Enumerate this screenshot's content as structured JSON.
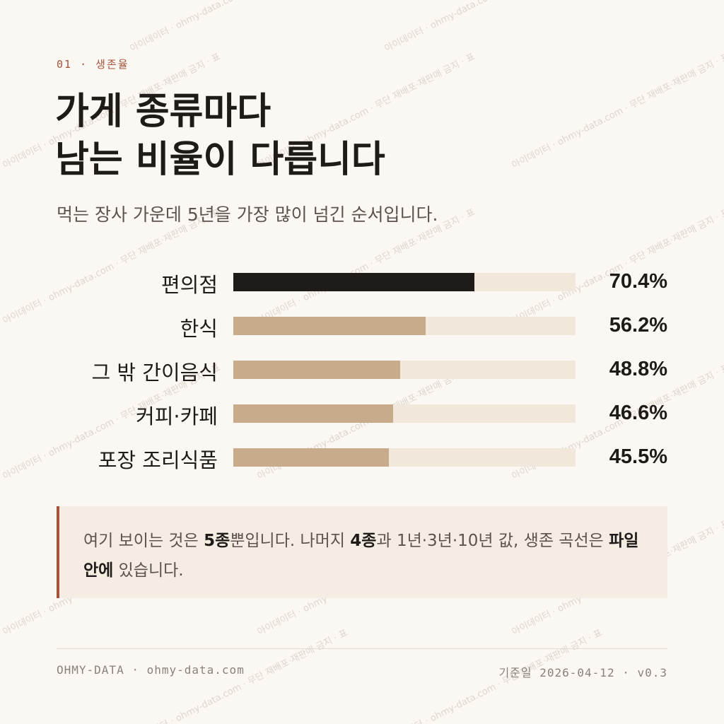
{
  "header": {
    "eyebrow": "01 · 생존율",
    "title_line1": "가게 종류마다",
    "title_line2": "남는 비율이 다릅니다",
    "subtitle": "먹는 장사 가운데 5년을 가장 많이 넘긴 순서입니다."
  },
  "colors": {
    "accent": "#a5533b",
    "bar_top": "#1f1b18",
    "bar": "#c8ab8a",
    "track": "#f1e7da"
  },
  "chart_data": {
    "type": "bar",
    "orientation": "horizontal",
    "categories": [
      "편의점",
      "한식",
      "그 밖 간이음식",
      "커피·카페",
      "포장 조리식품"
    ],
    "values": [
      70.4,
      56.2,
      48.8,
      46.6,
      45.5
    ],
    "value_labels": [
      "70.4%",
      "56.2%",
      "48.8%",
      "46.6%",
      "45.5%"
    ],
    "xlim": [
      0,
      100
    ],
    "highlight_index": 0,
    "title": "",
    "xlabel": "",
    "ylabel": ""
  },
  "note": {
    "t1": "여기 보이는 것은 ",
    "b1": "5종",
    "t2": "뿐입니다. 나머지 ",
    "b2": "4종",
    "t3": "과 1년·3년·10년 값, 생존 곡선은 ",
    "b3": "파일 안에",
    "t4": " 있습니다."
  },
  "footer": {
    "brand": "OHMY-DATA · ohmy-data.com",
    "date_label": "기준일",
    "date_value": " 2026-04-12 · v0.3"
  },
  "watermark": {
    "text": "아이데이터 · ohmy-data.com · 무단 재배포·재판매 금지 · 표"
  }
}
